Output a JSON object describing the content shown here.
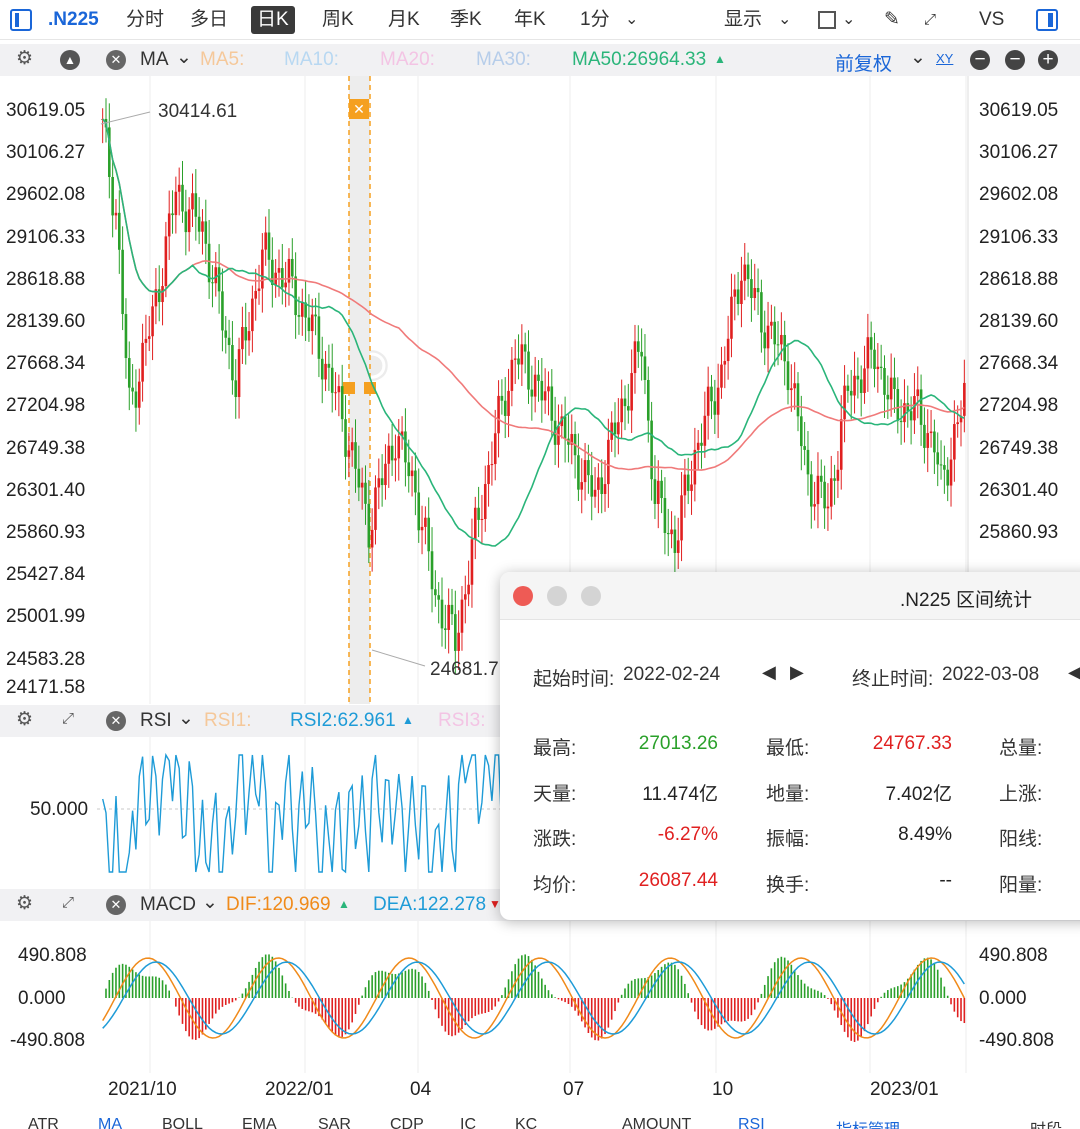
{
  "toolbar": {
    "symbol": ".N225",
    "tabs": [
      "分时",
      "多日",
      "日K",
      "周K",
      "月K",
      "季K",
      "年K"
    ],
    "active_tab": "日K",
    "interval": "1分",
    "display": "显示",
    "vs": "VS"
  },
  "ma_strip": {
    "label": "MA",
    "ma5": "MA5:",
    "ma10": "MA10:",
    "ma20": "MA20:",
    "ma30": "MA30:",
    "ma50": "MA50:26964.33",
    "ma50_arrow": "▲",
    "adjust": "前复权"
  },
  "price_axis": [
    "30619.05",
    "30106.27",
    "29602.08",
    "29106.33",
    "28618.88",
    "28139.60",
    "27668.34",
    "27204.98",
    "26749.38",
    "26301.40",
    "25860.93",
    "25427.84",
    "25001.99",
    "24583.28",
    "24171.58"
  ],
  "price_annotations": {
    "high": "30414.61",
    "low": "24681.7"
  },
  "rsi_strip": {
    "label": "RSI",
    "rsi1": "RSI1:",
    "rsi2": "RSI2:62.961",
    "rsi2_arrow": "▲",
    "rsi3": "RSI3:",
    "level": "50.000"
  },
  "macd_strip": {
    "label": "MACD",
    "dif": "DIF:120.969",
    "dif_arrow": "▲",
    "dea": "DEA:122.278",
    "dea_arrow": "▼"
  },
  "macd_axis": [
    "490.808",
    "0.000",
    "-490.808"
  ],
  "time_axis": [
    "2021/10",
    "2022/01",
    "04",
    "07",
    "10",
    "2023/01"
  ],
  "bottom_tabs": [
    "ATR",
    "MA",
    "BOLL",
    "EMA",
    "SAR",
    "CDP",
    "IC",
    "KC",
    "AMOUNT",
    "RSI",
    "指标管理",
    "时段"
  ],
  "popup": {
    "title": ".N225 区间统计",
    "start_label": "起始时间:",
    "start": "2022-02-24",
    "end_label": "终止时间:",
    "end": "2022-03-08",
    "rows": [
      {
        "k1": "最高:",
        "v1": "27013.26",
        "k2": "最低:",
        "v2": "24767.33",
        "k3": "总量:"
      },
      {
        "k1": "天量:",
        "v1": "11.474亿",
        "k2": "地量:",
        "v2": "7.402亿",
        "k3": "上涨:"
      },
      {
        "k1": "涨跌:",
        "v1": "-6.27%",
        "k2": "振幅:",
        "v2": "8.49%",
        "k3": "阳线:"
      },
      {
        "k1": "均价:",
        "v1": "26087.44",
        "k2": "换手:",
        "v2": "--",
        "k3": "阳量:"
      }
    ]
  },
  "colors": {
    "up": "#e02020",
    "down": "#2aa02a",
    "ma50": "#2ab57a",
    "ma200": "#f07a7a",
    "rsi": "#1e9bd7",
    "dif": "#f08a1a",
    "dea": "#1e9bd7",
    "accent": "#1a66d8"
  }
}
